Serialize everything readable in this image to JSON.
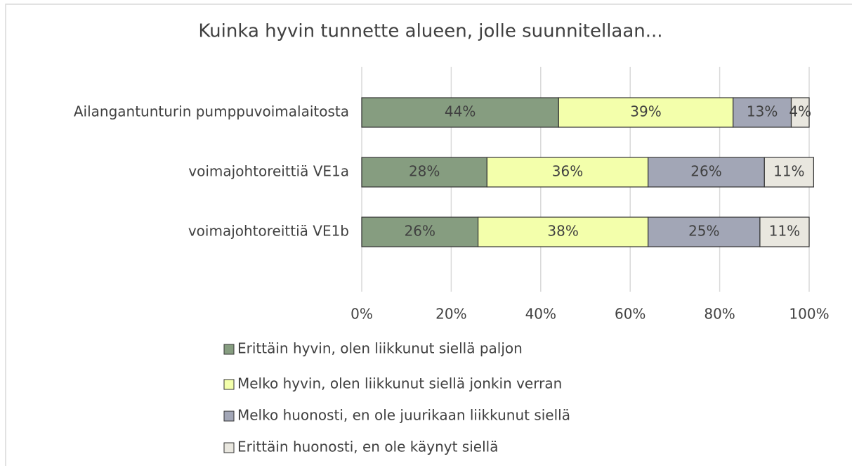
{
  "chart_data": {
    "type": "stacked_bar_horizontal",
    "title": "Kuinka hyvin tunnette alueen, jolle suunnitellaan...",
    "categories": [
      "Ailangantunturin pumppuvoimalaitosta",
      "voimajohtoreittiä VE1a",
      "voimajohtoreittiä VE1b"
    ],
    "series": [
      {
        "name": "Erittäin hyvin, olen liikkunut siellä paljon",
        "color": "#869d80",
        "values": [
          44,
          28,
          26
        ],
        "value_labels": [
          "44%",
          "28%",
          "26%"
        ]
      },
      {
        "name": "Melko hyvin, olen liikkunut siellä jonkin verran",
        "color": "#f3ffab",
        "values": [
          39,
          36,
          38
        ],
        "value_labels": [
          "39%",
          "36%",
          "38%"
        ]
      },
      {
        "name": "Melko huonosti, en ole juurikaan liikkunut siellä",
        "color": "#a2a6b6",
        "values": [
          13,
          26,
          25
        ],
        "value_labels": [
          "13%",
          "26%",
          "25%"
        ]
      },
      {
        "name": "Erittäin huonosti, en ole käynyt siellä",
        "color": "#e9e7df",
        "values": [
          4,
          11,
          11
        ],
        "value_labels": [
          "4%",
          "11%",
          "11%"
        ]
      }
    ],
    "xlim": [
      0,
      100
    ],
    "xticks": [
      {
        "value": 0,
        "label": "0%"
      },
      {
        "value": 20,
        "label": "20%"
      },
      {
        "value": 40,
        "label": "40%"
      },
      {
        "value": 60,
        "label": "60%"
      },
      {
        "value": 80,
        "label": "80%"
      },
      {
        "value": 100,
        "label": "100%"
      }
    ],
    "grid": true,
    "legend": "bottom"
  }
}
